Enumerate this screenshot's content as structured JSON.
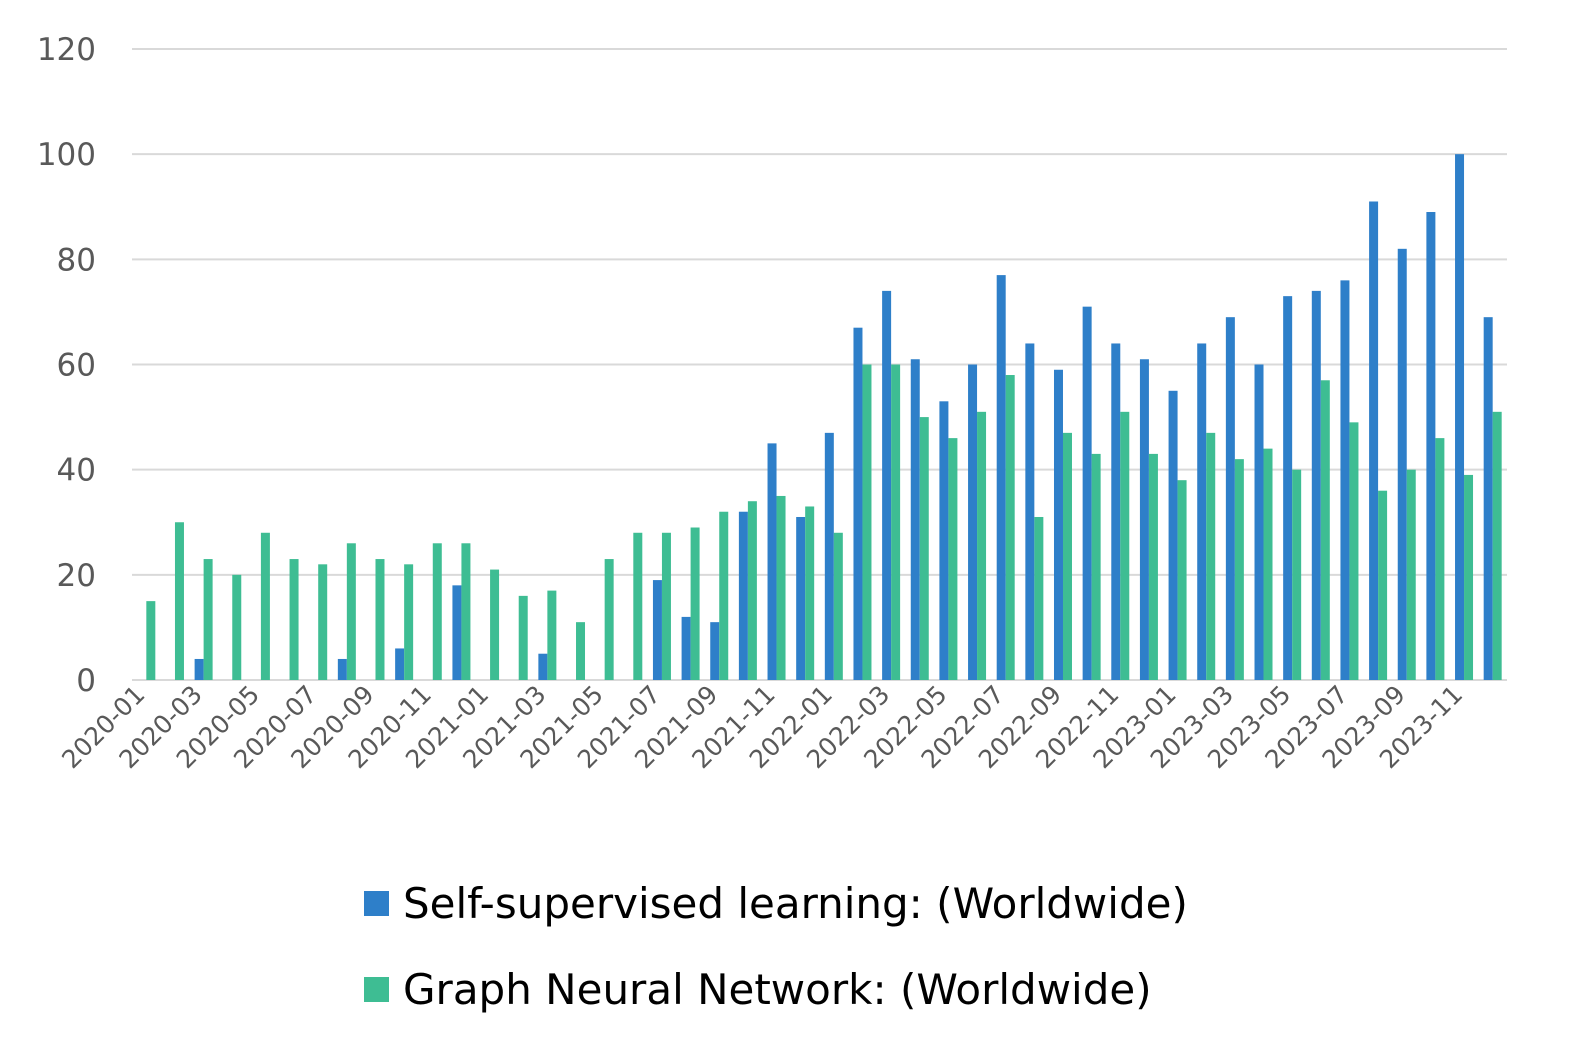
{
  "chart_data": {
    "type": "bar",
    "title": "",
    "xlabel": "",
    "ylabel": "",
    "ylim": [
      0,
      120
    ],
    "yticks": [
      "0",
      "20",
      "40",
      "60",
      "80",
      "100",
      "120"
    ],
    "grid": true,
    "legend_position": "bottom",
    "categories": [
      "2020-01",
      "2020-02",
      "2020-03",
      "2020-04",
      "2020-05",
      "2020-06",
      "2020-07",
      "2020-08",
      "2020-09",
      "2020-10",
      "2020-11",
      "2020-12",
      "2021-01",
      "2021-02",
      "2021-03",
      "2021-04",
      "2021-05",
      "2021-06",
      "2021-07",
      "2021-08",
      "2021-09",
      "2021-10",
      "2021-11",
      "2021-12",
      "2022-01",
      "2022-02",
      "2022-03",
      "2022-04",
      "2022-05",
      "2022-06",
      "2022-07",
      "2022-08",
      "2022-09",
      "2022-10",
      "2022-11",
      "2022-12",
      "2023-01",
      "2023-02",
      "2023-03",
      "2023-04",
      "2023-05",
      "2023-06",
      "2023-07",
      "2023-08",
      "2023-09",
      "2023-10",
      "2023-11",
      "2023-12"
    ],
    "xtick_labels": [
      "2020-01",
      "2020-03",
      "2020-05",
      "2020-07",
      "2020-09",
      "2020-11",
      "2021-01",
      "2021-03",
      "2021-05",
      "2021-07",
      "2021-09",
      "2021-11",
      "2022-01",
      "2022-03",
      "2022-05",
      "2022-07",
      "2022-09",
      "2022-11",
      "2023-01",
      "2023-03",
      "2023-05",
      "2023-07",
      "2023-09",
      "2023-11"
    ],
    "series": [
      {
        "name": "Self-supervised learning: (Worldwide)",
        "color": "#2e7fc9",
        "values": [
          0,
          0,
          4,
          0,
          0,
          0,
          0,
          4,
          0,
          6,
          0,
          18,
          0,
          0,
          5,
          0,
          0,
          0,
          19,
          12,
          11,
          32,
          45,
          31,
          47,
          67,
          74,
          61,
          53,
          60,
          77,
          64,
          59,
          71,
          64,
          61,
          55,
          64,
          69,
          60,
          73,
          74,
          76,
          91,
          82,
          89,
          100,
          69
        ]
      },
      {
        "name": "Graph Neural Network: (Worldwide)",
        "color": "#3ebd93",
        "values": [
          15,
          30,
          23,
          20,
          28,
          23,
          22,
          26,
          23,
          22,
          26,
          26,
          21,
          16,
          17,
          11,
          23,
          28,
          28,
          29,
          32,
          34,
          35,
          33,
          28,
          60,
          60,
          50,
          46,
          51,
          58,
          31,
          47,
          43,
          51,
          43,
          38,
          47,
          42,
          44,
          40,
          57,
          49,
          36,
          40,
          46,
          39,
          51
        ]
      }
    ]
  }
}
